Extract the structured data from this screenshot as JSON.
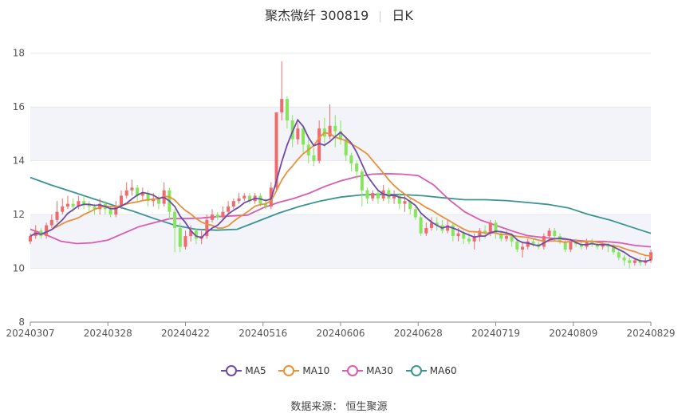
{
  "header": {
    "title": "聚杰微纤 300819",
    "period": "日K"
  },
  "source": "数据来源： 恒生聚源",
  "colors": {
    "up": "#ef6b6b",
    "down": "#86e65b",
    "ma5": "#6f4aa8",
    "ma10": "#e8903a",
    "ma30": "#d95cae",
    "ma60": "#3a9494",
    "grid": "#e6e6e6",
    "band": "#f3f4fa"
  },
  "chart_data": {
    "type": "candlestick",
    "y_ticks": [
      "8",
      "10",
      "12",
      "14",
      "16",
      "18"
    ],
    "ylim": [
      8,
      18.2
    ],
    "x_ticks": [
      "20240307",
      "20240328",
      "20240422",
      "20240516",
      "20240606",
      "20240628",
      "20240719",
      "20240809",
      "20240829"
    ],
    "legend": [
      "MA5",
      "MA10",
      "MA30",
      "MA60"
    ],
    "candles": [
      [
        11.0,
        11.2,
        11.3,
        10.9
      ],
      [
        11.2,
        11.4,
        11.6,
        11.1
      ],
      [
        11.4,
        11.2,
        11.5,
        11.1
      ],
      [
        11.2,
        11.6,
        11.7,
        11.1
      ],
      [
        11.6,
        11.8,
        12.0,
        11.5
      ],
      [
        11.8,
        12.1,
        12.5,
        11.7
      ],
      [
        12.1,
        12.3,
        12.6,
        12.0
      ],
      [
        12.3,
        12.4,
        12.7,
        12.2
      ],
      [
        12.4,
        12.3,
        12.6,
        12.1
      ],
      [
        12.3,
        12.5,
        12.7,
        12.2
      ],
      [
        12.5,
        12.4,
        12.7,
        12.2
      ],
      [
        12.4,
        12.3,
        12.5,
        12.1
      ],
      [
        12.3,
        12.2,
        12.4,
        12.0
      ],
      [
        12.2,
        12.4,
        12.6,
        12.0
      ],
      [
        12.4,
        12.2,
        12.5,
        12.0
      ],
      [
        12.2,
        12.0,
        12.3,
        11.9
      ],
      [
        12.0,
        12.3,
        12.5,
        11.9
      ],
      [
        12.3,
        12.7,
        12.9,
        12.2
      ],
      [
        12.7,
        12.9,
        13.2,
        12.6
      ],
      [
        12.9,
        13.0,
        13.3,
        12.7
      ],
      [
        13.0,
        12.7,
        13.1,
        12.5
      ],
      [
        12.7,
        12.8,
        13.0,
        12.5
      ],
      [
        12.8,
        12.5,
        12.9,
        12.3
      ],
      [
        12.5,
        12.6,
        12.8,
        12.3
      ],
      [
        12.6,
        12.4,
        12.7,
        12.2
      ],
      [
        12.4,
        12.9,
        13.2,
        12.3
      ],
      [
        12.9,
        12.1,
        13.0,
        11.8
      ],
      [
        12.1,
        11.5,
        12.2,
        10.6
      ],
      [
        11.5,
        10.8,
        11.7,
        10.6
      ],
      [
        10.8,
        11.2,
        11.4,
        10.7
      ],
      [
        11.2,
        11.4,
        11.6,
        11.0
      ],
      [
        11.4,
        11.1,
        11.5,
        10.9
      ],
      [
        11.1,
        11.2,
        11.4,
        10.9
      ],
      [
        11.2,
        11.8,
        12.0,
        11.1
      ],
      [
        11.8,
        12.0,
        12.2,
        11.7
      ],
      [
        12.0,
        11.9,
        12.1,
        11.8
      ],
      [
        11.9,
        12.1,
        12.3,
        11.8
      ],
      [
        12.1,
        12.3,
        12.5,
        12.0
      ],
      [
        12.3,
        12.5,
        12.6,
        12.2
      ],
      [
        12.5,
        12.6,
        12.8,
        12.4
      ],
      [
        12.6,
        12.7,
        12.8,
        12.5
      ],
      [
        12.7,
        12.5,
        12.8,
        12.4
      ],
      [
        12.5,
        12.7,
        12.8,
        12.4
      ],
      [
        12.7,
        12.4,
        12.8,
        12.3
      ],
      [
        12.4,
        12.3,
        12.6,
        12.2
      ],
      [
        12.3,
        13.0,
        13.2,
        12.2
      ],
      [
        13.0,
        15.8,
        15.8,
        12.9
      ],
      [
        15.8,
        16.3,
        17.7,
        15.5
      ],
      [
        16.3,
        15.5,
        16.4,
        15.2
      ],
      [
        15.5,
        14.8,
        15.7,
        14.5
      ],
      [
        14.8,
        15.2,
        15.4,
        14.6
      ],
      [
        15.2,
        14.6,
        15.3,
        14.3
      ],
      [
        14.6,
        14.2,
        14.8,
        13.9
      ],
      [
        14.2,
        14.0,
        14.5,
        13.8
      ],
      [
        14.0,
        15.2,
        15.5,
        13.9
      ],
      [
        15.2,
        14.9,
        15.6,
        14.5
      ],
      [
        14.9,
        15.3,
        16.1,
        14.8
      ],
      [
        15.3,
        15.1,
        15.7,
        14.5
      ],
      [
        15.1,
        14.8,
        15.5,
        14.6
      ],
      [
        14.8,
        14.2,
        14.9,
        14.0
      ],
      [
        14.2,
        13.9,
        14.3,
        13.6
      ],
      [
        13.9,
        13.6,
        14.0,
        13.3
      ],
      [
        13.6,
        12.9,
        13.7,
        12.3
      ],
      [
        12.9,
        12.6,
        13.0,
        12.4
      ],
      [
        12.6,
        12.8,
        12.9,
        12.5
      ],
      [
        12.8,
        12.6,
        12.9,
        12.4
      ],
      [
        12.6,
        12.9,
        13.1,
        12.5
      ],
      [
        12.9,
        12.6,
        13.0,
        12.4
      ],
      [
        12.6,
        12.7,
        12.9,
        12.4
      ],
      [
        12.7,
        12.4,
        12.8,
        12.2
      ],
      [
        12.4,
        12.5,
        12.7,
        12.1
      ],
      [
        12.5,
        12.2,
        12.6,
        12.0
      ],
      [
        12.2,
        11.9,
        12.3,
        11.8
      ],
      [
        11.9,
        11.3,
        12.0,
        11.2
      ],
      [
        11.3,
        11.5,
        11.7,
        11.2
      ],
      [
        11.5,
        11.7,
        11.9,
        11.4
      ],
      [
        11.7,
        11.6,
        11.9,
        11.4
      ],
      [
        11.6,
        11.4,
        11.8,
        11.3
      ],
      [
        11.4,
        11.6,
        11.8,
        11.3
      ],
      [
        11.6,
        11.2,
        11.7,
        11.0
      ],
      [
        11.2,
        11.3,
        11.5,
        11.0
      ],
      [
        11.3,
        11.1,
        11.4,
        10.9
      ],
      [
        11.1,
        11.0,
        11.3,
        10.9
      ],
      [
        11.0,
        11.2,
        11.3,
        10.7
      ],
      [
        11.2,
        11.4,
        11.5,
        11.0
      ],
      [
        11.4,
        11.3,
        11.6,
        11.1
      ],
      [
        11.3,
        11.7,
        11.8,
        11.2
      ],
      [
        11.7,
        11.3,
        11.8,
        11.1
      ],
      [
        11.3,
        11.1,
        11.4,
        11.0
      ],
      [
        11.1,
        11.2,
        11.4,
        11.0
      ],
      [
        11.2,
        11.0,
        11.3,
        10.8
      ],
      [
        11.0,
        10.7,
        11.1,
        10.6
      ],
      [
        10.7,
        10.8,
        11.0,
        10.4
      ],
      [
        10.8,
        11.0,
        11.1,
        10.7
      ],
      [
        11.0,
        10.9,
        11.1,
        10.8
      ],
      [
        10.9,
        10.8,
        11.0,
        10.7
      ],
      [
        10.8,
        11.2,
        11.3,
        10.7
      ],
      [
        11.2,
        11.4,
        11.5,
        11.1
      ],
      [
        11.4,
        11.2,
        11.5,
        11.0
      ],
      [
        11.2,
        11.0,
        11.3,
        10.9
      ],
      [
        11.0,
        10.7,
        11.1,
        10.6
      ],
      [
        10.7,
        11.0,
        11.1,
        10.6
      ],
      [
        11.0,
        10.9,
        11.1,
        10.8
      ],
      [
        10.9,
        10.8,
        11.0,
        10.7
      ],
      [
        10.8,
        11.0,
        11.1,
        10.7
      ],
      [
        11.0,
        10.9,
        11.1,
        10.8
      ],
      [
        10.9,
        10.8,
        11.0,
        10.7
      ],
      [
        10.8,
        10.9,
        11.0,
        10.7
      ],
      [
        10.9,
        10.8,
        11.0,
        10.6
      ],
      [
        10.8,
        10.6,
        10.9,
        10.5
      ],
      [
        10.6,
        10.4,
        10.7,
        10.3
      ],
      [
        10.4,
        10.3,
        10.5,
        10.1
      ],
      [
        10.3,
        10.2,
        10.4,
        10.0
      ],
      [
        10.2,
        10.3,
        10.4,
        10.1
      ],
      [
        10.3,
        10.2,
        10.4,
        10.1
      ],
      [
        10.2,
        10.3,
        10.4,
        10.1
      ],
      [
        10.3,
        10.6,
        10.7,
        10.2
      ]
    ],
    "ma60": [
      13.38,
      13.1,
      12.85,
      12.6,
      12.35,
      12.12,
      11.85,
      11.6,
      11.45,
      11.42,
      11.45,
      11.75,
      12.05,
      12.3,
      12.5,
      12.65,
      12.73,
      12.75,
      12.74,
      12.7,
      12.62,
      12.55,
      12.55,
      12.52,
      12.45,
      12.38,
      12.25,
      12.0,
      11.8,
      11.55,
      11.3
    ],
    "ma30": [
      11.45,
      11.25,
      11.0,
      10.92,
      10.95,
      11.05,
      11.3,
      11.55,
      11.7,
      11.85,
      11.85,
      11.87,
      11.92,
      11.95,
      11.98,
      12.25,
      12.45,
      12.6,
      12.8,
      13.05,
      13.25,
      13.4,
      13.5,
      13.52,
      13.5,
      13.45,
      13.1,
      12.55,
      12.1,
      11.8,
      11.6,
      11.4,
      11.22,
      11.15,
      11.1,
      11.05,
      11.0,
      11.0,
      10.95,
      10.85,
      10.8
    ]
  }
}
